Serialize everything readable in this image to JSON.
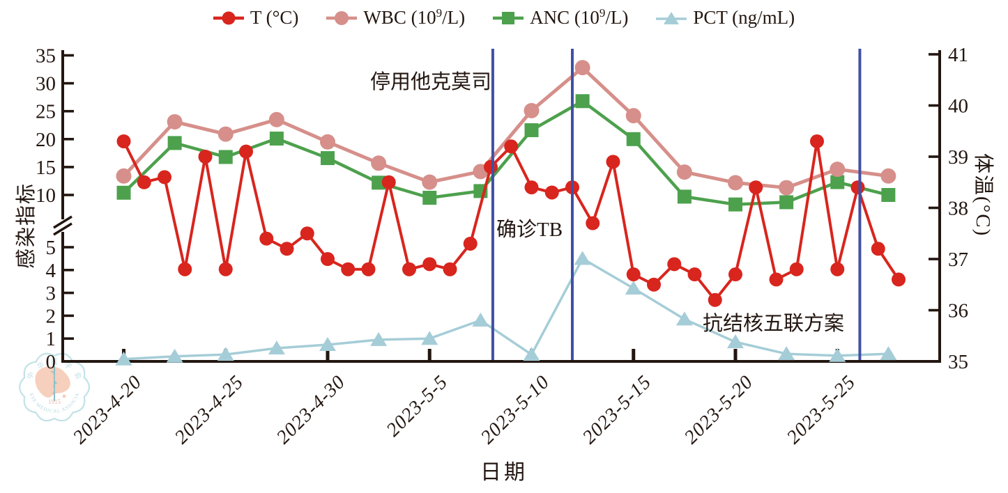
{
  "legend": {
    "items": [
      {
        "id": "temperature",
        "label_pre": "T (°C)",
        "label_sup": "",
        "label_post": "",
        "color": "#d8251e",
        "marker": "circle"
      },
      {
        "id": "wbc",
        "label_pre": "WBC (10",
        "label_sup": "9",
        "label_post": "/L)",
        "color": "#d68f8a",
        "marker": "circle"
      },
      {
        "id": "anc",
        "label_pre": "ANC (10",
        "label_sup": "9",
        "label_post": "/L)",
        "color": "#4da14d",
        "marker": "square"
      },
      {
        "id": "pct",
        "label_pre": "PCT (ng/mL)",
        "label_sup": "",
        "label_post": "",
        "color": "#a5cdd7",
        "marker": "triangle"
      }
    ]
  },
  "axes": {
    "left": {
      "title": "感染指标",
      "lower_ticks": [
        0,
        1,
        2,
        3,
        4,
        5
      ],
      "upper_ticks": [
        10,
        15,
        20,
        25,
        30,
        35
      ],
      "has_break": true
    },
    "right": {
      "title": "体温(°C)",
      "ticks": [
        35,
        36,
        37,
        38,
        39,
        40,
        41
      ]
    },
    "x": {
      "title": "日期",
      "tick_labels": [
        "2023-4-20",
        "2023-4-25",
        "2023-4-30",
        "2023-5-5",
        "2023-5-10",
        "2023-5-15",
        "2023-5-20",
        "2023-5-25"
      ]
    }
  },
  "annotations": {
    "stop_tacrolimus": "停用他克莫司",
    "tb_diagnosis": "确诊TB",
    "anti_tb_regimen": "抗结核五联方案"
  },
  "watermark": {
    "top_text": "中华医学会",
    "year": "1915",
    "bottom_text": "CHINESE MEDICAL ASSOCIATION"
  },
  "chart_data": {
    "type": "line",
    "title": "",
    "x_axis": {
      "label": "日期",
      "unit": "date",
      "start": "2023-4-20",
      "end": "2023-5-28",
      "tick_step_days": 5
    },
    "left_axis": {
      "label": "感染指标",
      "segments": [
        [
          0,
          5
        ],
        [
          10,
          35
        ]
      ],
      "break_between": [
        5,
        10
      ]
    },
    "right_axis": {
      "label": "体温(°C)",
      "range": [
        35,
        41
      ]
    },
    "series": [
      {
        "name": "T (°C)",
        "axis": "right",
        "marker": "circle",
        "color": "#d8251e",
        "line_width": 4,
        "marker_size": 10,
        "days": [
          0,
          1,
          2,
          3,
          4,
          5,
          6,
          7,
          8,
          9,
          10,
          11,
          12,
          13,
          14,
          15,
          16,
          17,
          18,
          19,
          20,
          21,
          22,
          23,
          24,
          25,
          26,
          27,
          28,
          29,
          30,
          31,
          32,
          33,
          34,
          35,
          36,
          37,
          38
        ],
        "values": [
          39.3,
          38.5,
          38.6,
          36.8,
          39.0,
          36.8,
          39.1,
          37.4,
          37.2,
          37.5,
          37.0,
          36.8,
          36.8,
          38.5,
          36.8,
          36.9,
          36.8,
          37.3,
          38.8,
          39.2,
          38.4,
          38.3,
          38.4,
          37.7,
          38.9,
          36.7,
          36.5,
          36.9,
          36.7,
          36.2,
          36.7,
          38.4,
          36.6,
          36.8,
          39.3,
          36.8,
          38.4,
          37.2,
          36.6
        ]
      },
      {
        "name": "WBC (10⁹/L)",
        "axis": "left",
        "marker": "circle",
        "color": "#d68f8a",
        "line_width": 5,
        "marker_size": 11,
        "days": [
          0,
          2.5,
          5,
          7.5,
          10,
          12.5,
          15,
          17.5,
          20,
          22.5,
          25,
          27.5,
          30,
          32.5,
          35,
          37.5
        ],
        "values": [
          13.4,
          23.1,
          20.9,
          23.5,
          19.5,
          15.7,
          12.3,
          14.2,
          25.1,
          32.8,
          24.2,
          14.1,
          12.2,
          11.3,
          14.6,
          13.4
        ]
      },
      {
        "name": "ANC (10⁹/L)",
        "axis": "left",
        "marker": "square",
        "color": "#4da14d",
        "line_width": 4.5,
        "marker_size": 10,
        "days": [
          0,
          2.5,
          5,
          7.5,
          10,
          12.5,
          15,
          17.5,
          20,
          22.5,
          25,
          27.5,
          30,
          32.5,
          35,
          37.5
        ],
        "values": [
          10.4,
          19.3,
          16.8,
          20.1,
          16.6,
          12.2,
          9.5,
          10.7,
          21.6,
          26.8,
          20.0,
          9.7,
          8.3,
          8.7,
          12.3,
          10.0
        ]
      },
      {
        "name": "PCT (ng/mL)",
        "axis": "left",
        "marker": "triangle",
        "color": "#a5cdd7",
        "line_width": 3.5,
        "marker_size": 11,
        "days": [
          0,
          2.5,
          5,
          7.5,
          10,
          12.5,
          15,
          17.5,
          20,
          22.5,
          25,
          27.5,
          30,
          32.5,
          35,
          37.5
        ],
        "values": [
          0.1,
          0.22,
          0.3,
          0.58,
          0.73,
          0.95,
          1.0,
          1.8,
          0.3,
          4.5,
          3.2,
          1.85,
          0.85,
          0.33,
          0.25,
          0.33
        ]
      }
    ],
    "event_lines": [
      {
        "day": 18.1,
        "date": "2023-5-8",
        "label": "停用他克莫司"
      },
      {
        "day": 22.0,
        "date": "2023-5-12",
        "label": "确诊TB"
      },
      {
        "day": 36.1,
        "date": "2023-5-26",
        "label": "抗结核五联方案"
      }
    ],
    "event_line_color": "#4150a5",
    "grid": false,
    "legend_position": "top"
  }
}
